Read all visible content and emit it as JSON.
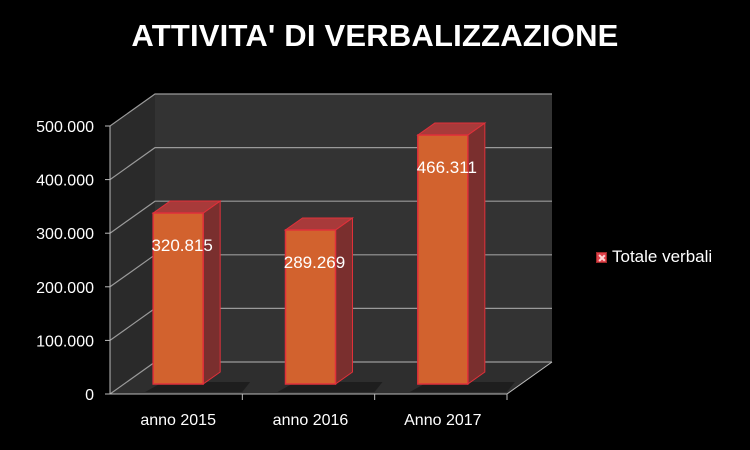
{
  "chart_data": {
    "type": "bar",
    "title": "ATTIVITA' DI VERBALIZZAZIONE",
    "categories": [
      "anno 2015",
      "anno 2016",
      "Anno 2017"
    ],
    "series": [
      {
        "name": "Totale verbali",
        "values": [
          320815,
          289269,
          466311
        ]
      }
    ],
    "data_labels": [
      "320.815",
      "289.269",
      "466.311"
    ],
    "ytick_labels": [
      "0",
      "100.000",
      "200.000",
      "300.000",
      "400.000",
      "500.000"
    ],
    "yticks": [
      0,
      100000,
      200000,
      300000,
      400000,
      500000
    ],
    "ylim": [
      0,
      500000
    ],
    "grid": true,
    "legend_position": "right",
    "style": "3d-column",
    "colors": {
      "background": "#000000",
      "bar_front": "#d2622e",
      "bar_side": "#7a2f2e",
      "bar_top": "#a83a3a",
      "bar_edge": "#e0303a",
      "wall": "#333333",
      "gridline": "#9a9a9a",
      "text": "#ffffff"
    }
  }
}
